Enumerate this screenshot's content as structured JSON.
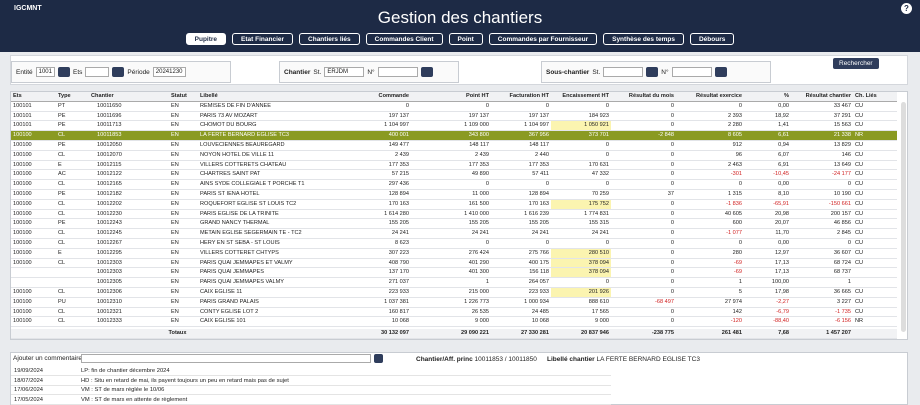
{
  "header": {
    "brand": "IGCMNT",
    "title": "Gestion des chantiers",
    "help": "?"
  },
  "tabs": [
    "Pupitre",
    "Etat Financier",
    "Chantiers liés",
    "Commandes Client",
    "Point",
    "Commandes par Fournisseur",
    "Synthèse des temps",
    "Débours"
  ],
  "filters": {
    "entite_label": "Entité",
    "entite": "1001",
    "ets_label": "Ets",
    "periode_label": "Période",
    "periode": "20241230",
    "chantier_label": "Chantier",
    "chantier_st_label": "St.",
    "chantier_st": "ERJDM",
    "chantier_no_label": "N°",
    "sous_label": "Sous-chantier",
    "sous_st_label": "St.",
    "sous_no_label": "N°",
    "search": "Rechercher"
  },
  "table": {
    "columns": [
      "Ets",
      "Type",
      "Chantier",
      "Statut",
      "Libellé",
      "Commande",
      "Point HT",
      "Facturation HT",
      "Encaissement HT",
      "Résultat du mois",
      "Résultat exercice",
      "%",
      "Résultat chantier",
      "Ch. Liés"
    ],
    "rows": [
      [
        "100101",
        "PT",
        "10011650",
        "EN",
        "REMISES DE FIN D'ANNEE",
        "0",
        "0",
        "0",
        "0",
        "0",
        "0",
        "0,00",
        "33 467",
        "CU"
      ],
      [
        "100101",
        "PE",
        "10011696",
        "EN",
        "PARIS 73 AV MOZART",
        "197 137",
        "197 137",
        "197 137",
        "184 923",
        "0",
        "2 393",
        "18,92",
        "37 291",
        "CU"
      ],
      [
        "100101",
        "PE",
        "10011713",
        "EN",
        "CHOMOT DU BOURG",
        "1 104 997",
        "1 109 000",
        "1 104 997",
        "1 050 921",
        "0",
        "2 280",
        "1,41",
        "15 563",
        "CU"
      ],
      [
        "100100",
        "CL",
        "10011853",
        "EN",
        "LA FERTE BERNARD EGLISE TC3",
        "400 001",
        "343 800",
        "367 956",
        "373 701",
        "-2 848",
        "8 605",
        "6,61",
        "21 338",
        "NR"
      ],
      [
        "100100",
        "PE",
        "10012050",
        "EN",
        "LOUVECIENNES BEAUREGARD",
        "149 477",
        "148 117",
        "148 117",
        "0",
        "0",
        "912",
        "0,94",
        "13 829",
        "CU"
      ],
      [
        "100100",
        "CL",
        "10012070",
        "EN",
        "NOYON HOTEL DE VILLE 11",
        "2 439",
        "2 439",
        "2 440",
        "0",
        "0",
        "96",
        "6,07",
        "146",
        "CU"
      ],
      [
        "100100",
        "E",
        "10012115",
        "EN",
        "VILLERS COTTERETS CHATEAU",
        "177 353",
        "177 353",
        "177 353",
        "170 631",
        "0",
        "2 463",
        "6,91",
        "13 649",
        "CU"
      ],
      [
        "100100",
        "AC",
        "10012122",
        "EN",
        "CHARTRES SAINT PAT",
        "57 215",
        "49 890",
        "57 411",
        "47 332",
        "0",
        "-301",
        "-10,45",
        "-24 177",
        "CU"
      ],
      [
        "100100",
        "CL",
        "10012165",
        "EN",
        "AINS SYDE COLLEGIALE T PORCHE T1",
        "297 436",
        "0",
        "0",
        "0",
        "0",
        "0",
        "0,00",
        "0",
        "CU"
      ],
      [
        "100100",
        "PE",
        "10012182",
        "EN",
        "PARIS ST IENA HOTEL",
        "128 894",
        "11 000",
        "128 894",
        "70 259",
        "37",
        "1 315",
        "8,10",
        "10 190",
        "CU"
      ],
      [
        "100100",
        "CL",
        "10012202",
        "EN",
        "ROQUEFORT EGLISE ST LOUIS TC2",
        "170 163",
        "161 500",
        "170 163",
        "175 752",
        "0",
        "-1 836",
        "-65,91",
        "-150 661",
        "CU"
      ],
      [
        "100100",
        "CL",
        "10012230",
        "EN",
        "PARIS EGLISE DE LA TRINITE",
        "1 614 280",
        "1 410 000",
        "1 616 239",
        "1 774 831",
        "0",
        "40 605",
        "20,98",
        "200 157",
        "CU"
      ],
      [
        "100100",
        "PE",
        "10012243",
        "EN",
        "GRAND NANCY THERMAL",
        "155 205",
        "155 205",
        "155 205",
        "155 315",
        "0",
        "600",
        "20,07",
        "46 856",
        "CU"
      ],
      [
        "100100",
        "CL",
        "10012245",
        "EN",
        "METAIN EGLISE SEGERMAIN TE - TC2",
        "24 241",
        "24 241",
        "24 241",
        "24 241",
        "0",
        "-1 077",
        "11,70",
        "2 845",
        "CU"
      ],
      [
        "100100",
        "CL",
        "10012267",
        "EN",
        "HERY EN ST SEBA - ST LOUIS",
        "8 623",
        "0",
        "0",
        "0",
        "0",
        "0",
        "0,00",
        "0",
        "CU"
      ],
      [
        "100100",
        "E",
        "10012295",
        "EN",
        "VILLERS COTTERET CHTYPS",
        "307 223",
        "276 424",
        "275 766",
        "280 510",
        "0",
        "280",
        "12,97",
        "36 607",
        "CU"
      ],
      [
        "100100",
        "CL",
        "10012303",
        "EN",
        "PARIS QUAI JEMMAPES ET VALMY",
        "408 790",
        "401 290",
        "400 175",
        "378 094",
        "0",
        "-69",
        "17,13",
        "68 724",
        "CU"
      ],
      [
        null,
        null,
        "10012303",
        "EN",
        "PARIS QUAI JEMMAPES",
        "137 170",
        "401 300",
        "156 118",
        "378 094",
        "0",
        "-69",
        "17,13",
        "68 737",
        null
      ],
      [
        null,
        null,
        "10012305",
        "EN",
        "PARIS QUAI JEMMAPES VALMY",
        "271 037",
        "1",
        "264 057",
        "0",
        "0",
        "1",
        "100,00",
        "1",
        null
      ],
      [
        "100100",
        "CL",
        "10012306",
        "EN",
        "CAIX EGLISE 11",
        "223 933",
        "215 000",
        "223 933",
        "201 926",
        "0",
        "5",
        "17,98",
        "36 665",
        "CU"
      ],
      [
        "100100",
        "PU",
        "10012310",
        "EN",
        "PARIS GRAND PALAIS",
        "1 037 381",
        "1 226 773",
        "1 000 934",
        "888 610",
        "-68 497",
        "27 974",
        "-2,27",
        "3 227",
        "CU"
      ],
      [
        "100100",
        "CL",
        "10012321",
        "EN",
        "CONTY EGLISE LOT 2",
        "160 817",
        "26 535",
        "24 485",
        "17 565",
        "0",
        "142",
        "-6,79",
        "-1 735",
        "CU"
      ],
      [
        "100100",
        "CL",
        "10012333",
        "EN",
        "CAIX EGLISE 101",
        "10 068",
        "9 000",
        "10 068",
        "9 000",
        "0",
        "-120",
        "-88,40",
        "-6 156",
        "NR"
      ]
    ],
    "totals_label": "Totaux",
    "totals": [
      "30 132 097",
      "29 090 221",
      "27 330 281",
      "20 837 946",
      "-238 775",
      "261 481",
      "7,68",
      "1 457 207"
    ]
  },
  "details": {
    "comment_label": "Ajouter un commentaire",
    "principal_label": "Chantier/Aff. princ",
    "principal": "10011853 / 10011850",
    "libelle_label": "Libellé chantier",
    "libelle": "LA FERTE BERNARD EGLISE TC3"
  },
  "comments": [
    {
      "date": "19/09/2024",
      "text": "LP: fin de chantier décembre 2024"
    },
    {
      "date": "18/07/2024",
      "text": "HD : Situ en retard de mai, ils payent toujours un peu en retard mais pas de sujet"
    },
    {
      "date": "17/06/2024",
      "text": "VM : ST de mars réglée le 10/06"
    },
    {
      "date": "17/05/2024",
      "text": "VM : ST de mars en attente de règlement"
    }
  ]
}
